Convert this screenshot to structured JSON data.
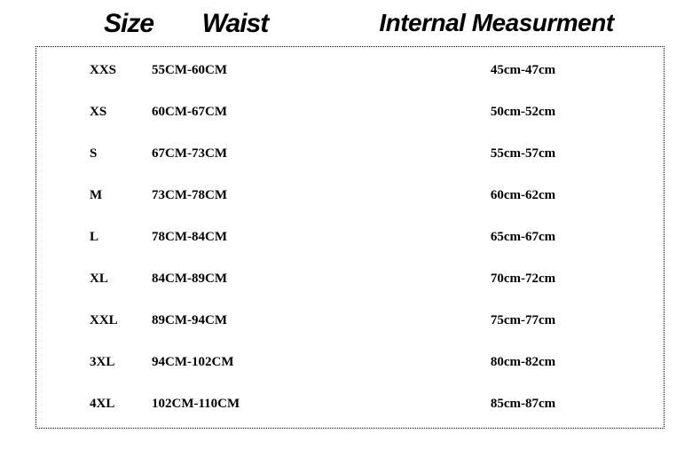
{
  "headers": {
    "size": "Size",
    "waist": "Waist",
    "internal": "Internal Measurment"
  },
  "rows": [
    {
      "size": "XXS",
      "waist": "55CM-60CM",
      "internal": "45cm-47cm"
    },
    {
      "size": "XS",
      "waist": "60CM-67CM",
      "internal": "50cm-52cm"
    },
    {
      "size": "S",
      "waist": "67CM-73CM",
      "internal": "55cm-57cm"
    },
    {
      "size": "M",
      "waist": "73CM-78CM",
      "internal": "60cm-62cm"
    },
    {
      "size": "L",
      "waist": "78CM-84CM",
      "internal": "65cm-67cm"
    },
    {
      "size": "XL",
      "waist": "84CM-89CM",
      "internal": "70cm-72cm"
    },
    {
      "size": "XXL",
      "waist": "89CM-94CM",
      "internal": "75cm-77cm"
    },
    {
      "size": "3XL",
      "waist": "94CM-102CM",
      "internal": "80cm-82cm"
    },
    {
      "size": "4XL",
      "waist": "102CM-110CM",
      "internal": "85cm-87cm"
    }
  ],
  "styling": {
    "background_color": "#ffffff",
    "text_color": "#000000",
    "border_style": "dotted",
    "border_color": "#000000",
    "header_fontsize": 30,
    "header_fontweight": 900,
    "header_fontstyle": "italic",
    "cell_fontsize": 15,
    "cell_fontweight": "bold",
    "cell_fontfamily": "Times New Roman",
    "row_spacing": 30
  }
}
